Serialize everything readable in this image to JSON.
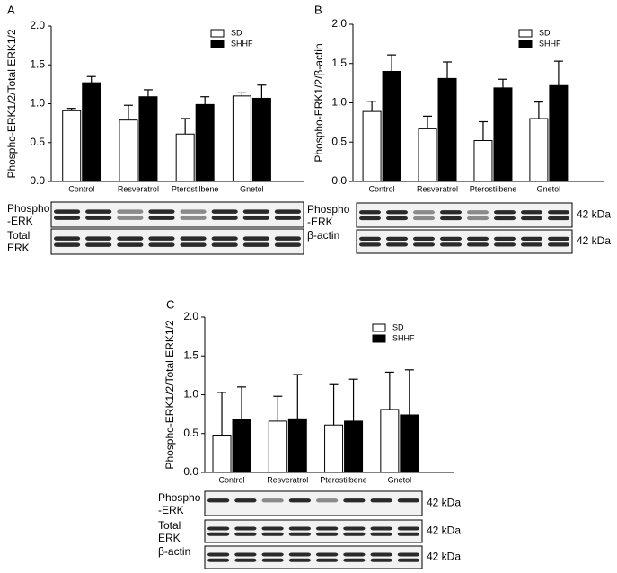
{
  "chart_data": [
    {
      "type": "bar",
      "panel": "A",
      "ylabel": "Phospho-ERK1/2/Total ERK1/2",
      "categories": [
        "Control",
        "Resveratrol",
        "Pterostilbene",
        "Gnetol"
      ],
      "series": [
        {
          "name": "SD",
          "color": "#ffffff",
          "values": [
            0.91,
            0.79,
            0.61,
            1.1
          ],
          "errors": [
            0.03,
            0.19,
            0.2,
            0.04
          ]
        },
        {
          "name": "SHHF",
          "color": "#000000",
          "values": [
            1.27,
            1.09,
            0.99,
            1.07
          ],
          "errors": [
            0.08,
            0.09,
            0.1,
            0.17
          ]
        }
      ],
      "ylim": [
        0,
        2
      ],
      "yticks": [
        {
          "value": 0,
          "label": "0.0"
        },
        0.5,
        {
          "value": 1,
          "label": "1.0"
        },
        1.5,
        {
          "value": 2,
          "label": "2.0"
        }
      ],
      "blots": [
        {
          "label": "Phospho -ERK"
        },
        {
          "label": "Total ERK"
        }
      ]
    },
    {
      "type": "bar",
      "panel": "B",
      "ylabel": "Phospho-ERK1/2/β-actin",
      "categories": [
        "Control",
        "Resveratrol",
        "Pterostilbene",
        "Gnetol"
      ],
      "series": [
        {
          "name": "SD",
          "color": "#ffffff",
          "values": [
            0.89,
            0.67,
            0.52,
            0.8
          ],
          "errors": [
            0.13,
            0.16,
            0.24,
            0.21
          ]
        },
        {
          "name": "SHHF",
          "color": "#000000",
          "values": [
            1.4,
            1.31,
            1.19,
            1.22
          ],
          "errors": [
            0.21,
            0.21,
            0.11,
            0.31
          ]
        }
      ],
      "ylim": [
        0,
        2
      ],
      "yticks": [
        {
          "value": 0,
          "label": "0.0"
        },
        0.5,
        {
          "value": 1,
          "label": "1.0"
        },
        1.5,
        {
          "value": 2,
          "label": "2.0"
        }
      ],
      "blots": [
        {
          "label": "Phospho -ERK",
          "kda": "42 kDa"
        },
        {
          "label": "β-actin",
          "kda": "42 kDa"
        }
      ]
    },
    {
      "type": "bar",
      "panel": "C",
      "ylabel": "Phospho-ERK1/2/Total ERK1/2",
      "categories": [
        "Control",
        "Resveratrol",
        "Pterostilbene",
        "Gnetol"
      ],
      "series": [
        {
          "name": "SD",
          "color": "#ffffff",
          "values": [
            0.48,
            0.66,
            0.61,
            0.81
          ],
          "errors": [
            0.55,
            0.32,
            0.52,
            0.48
          ]
        },
        {
          "name": "SHHF",
          "color": "#000000",
          "values": [
            0.68,
            0.69,
            0.66,
            0.74
          ],
          "errors": [
            0.42,
            0.57,
            0.54,
            0.58
          ]
        }
      ],
      "ylim": [
        0,
        2
      ],
      "yticks": [
        {
          "value": 0,
          "label": "0.0"
        },
        0.5,
        {
          "value": 1,
          "label": "1.0"
        },
        1.5,
        {
          "value": 2,
          "label": "2.0"
        }
      ],
      "blots": [
        {
          "label": "Phospho -ERK",
          "kda": "42 kDa"
        },
        {
          "label": "Total ERK",
          "kda": "42 kDa"
        },
        {
          "label": "β-actin",
          "kda": "42 kDa"
        }
      ]
    }
  ]
}
